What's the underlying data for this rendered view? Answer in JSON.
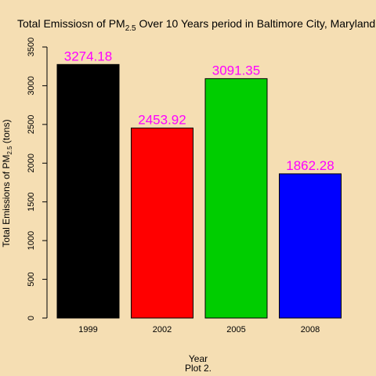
{
  "chart_data": {
    "type": "bar",
    "title": {
      "prefix": "Total Emissiosn of PM",
      "subscript": "2.5",
      "suffix": " Over 10 Years period in Baltimore City, Maryland"
    },
    "xlabel": "Year",
    "sub": "Plot 2.",
    "ylabel": {
      "prefix": "Total Emissions of PM",
      "subscript": "2.5",
      "suffix": " (tons)"
    },
    "categories": [
      "1999",
      "2002",
      "2005",
      "2008"
    ],
    "values": [
      3274.18,
      2453.92,
      3091.35,
      1862.28
    ],
    "value_labels": [
      "3274.18",
      "2453.92",
      "3091.35",
      "1862.28"
    ],
    "bar_colors": [
      "#000000",
      "#FF0000",
      "#00CD00",
      "#0000FF"
    ],
    "label_color": "#FF00FF",
    "background_color": "#F5DEB3",
    "ylim": [
      0,
      3500
    ],
    "yticks": [
      0,
      500,
      1000,
      1500,
      2000,
      2500,
      3000,
      3500
    ],
    "grid": false
  }
}
